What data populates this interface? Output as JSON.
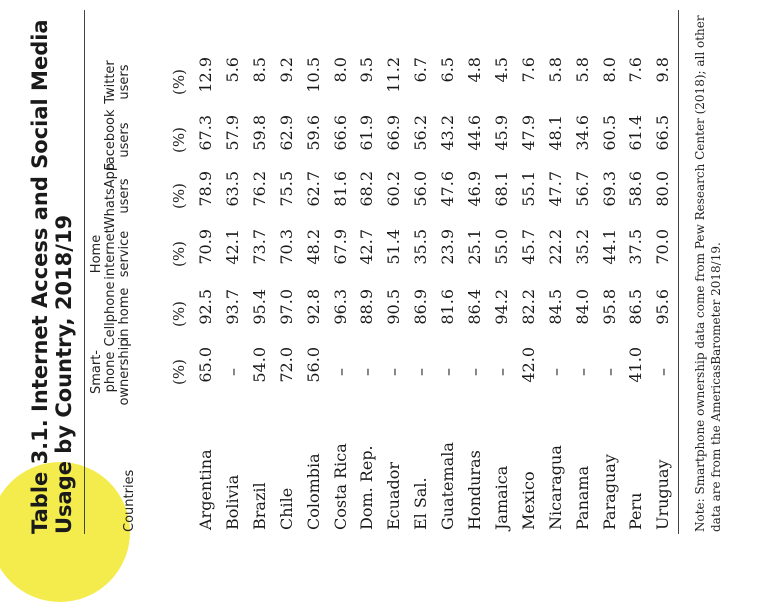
{
  "title": "Table 3.1. Internet Access and Social Media Usage by Country, 2018/19",
  "headers": {
    "countries": "Countries",
    "columns": [
      {
        "lines": [
          "Smart-",
          "phone",
          "ownership"
        ]
      },
      {
        "lines": [
          "Cellphone",
          "in home"
        ]
      },
      {
        "lines": [
          "Home",
          "internet",
          "service"
        ]
      },
      {
        "lines": [
          "WhatsApp",
          "users"
        ]
      },
      {
        "lines": [
          "Facebook",
          "users"
        ]
      },
      {
        "lines": [
          "Twitter",
          "users"
        ]
      }
    ],
    "unit": "(%)"
  },
  "rows": [
    {
      "country": "Argentina",
      "values": [
        "65.0",
        "92.5",
        "70.9",
        "78.9",
        "67.3",
        "12.9"
      ]
    },
    {
      "country": "Bolivia",
      "values": [
        "–",
        "93.7",
        "42.1",
        "63.5",
        "57.9",
        "5.6"
      ]
    },
    {
      "country": "Brazil",
      "values": [
        "54.0",
        "95.4",
        "73.7",
        "76.2",
        "59.8",
        "8.5"
      ]
    },
    {
      "country": "Chile",
      "values": [
        "72.0",
        "97.0",
        "70.3",
        "75.5",
        "62.9",
        "9.2"
      ]
    },
    {
      "country": "Colombia",
      "values": [
        "56.0",
        "92.8",
        "48.2",
        "62.7",
        "59.6",
        "10.5"
      ]
    },
    {
      "country": "Costa Rica",
      "values": [
        "–",
        "96.3",
        "67.9",
        "81.6",
        "66.6",
        "8.0"
      ]
    },
    {
      "country": "Dom. Rep.",
      "values": [
        "–",
        "88.9",
        "42.7",
        "68.2",
        "61.9",
        "9.5"
      ]
    },
    {
      "country": "Ecuador",
      "values": [
        "–",
        "90.5",
        "51.4",
        "60.2",
        "66.9",
        "11.2"
      ]
    },
    {
      "country": "El Sal.",
      "values": [
        "–",
        "86.9",
        "35.5",
        "56.0",
        "56.2",
        "6.7"
      ]
    },
    {
      "country": "Guatemala",
      "values": [
        "–",
        "81.6",
        "23.9",
        "47.6",
        "43.2",
        "6.5"
      ]
    },
    {
      "country": "Honduras",
      "values": [
        "–",
        "86.4",
        "25.1",
        "46.9",
        "44.6",
        "4.8"
      ]
    },
    {
      "country": "Jamaica",
      "values": [
        "–",
        "94.2",
        "55.0",
        "68.1",
        "45.9",
        "4.5"
      ]
    },
    {
      "country": "Mexico",
      "values": [
        "42.0",
        "82.2",
        "45.7",
        "55.1",
        "47.9",
        "7.6"
      ]
    },
    {
      "country": "Nicaragua",
      "values": [
        "–",
        "84.5",
        "22.2",
        "47.7",
        "48.1",
        "5.8"
      ]
    },
    {
      "country": "Panama",
      "values": [
        "–",
        "84.0",
        "35.2",
        "56.7",
        "34.6",
        "5.8"
      ]
    },
    {
      "country": "Paraguay",
      "values": [
        "–",
        "95.8",
        "44.1",
        "69.3",
        "60.5",
        "8.0"
      ]
    },
    {
      "country": "Peru",
      "values": [
        "41.0",
        "86.5",
        "37.5",
        "58.6",
        "61.4",
        "7.6"
      ]
    },
    {
      "country": "Uruguay",
      "values": [
        "–",
        "95.6",
        "70.0",
        "80.0",
        "66.5",
        "9.8"
      ]
    }
  ],
  "note": "Note: Smartphone ownership data come from Pew Research Center (2018); all other data are from the AmericasBarometer 2018/19.",
  "colors": {
    "accent_circle": "#f4ec4d",
    "text": "#1a1a1a"
  }
}
